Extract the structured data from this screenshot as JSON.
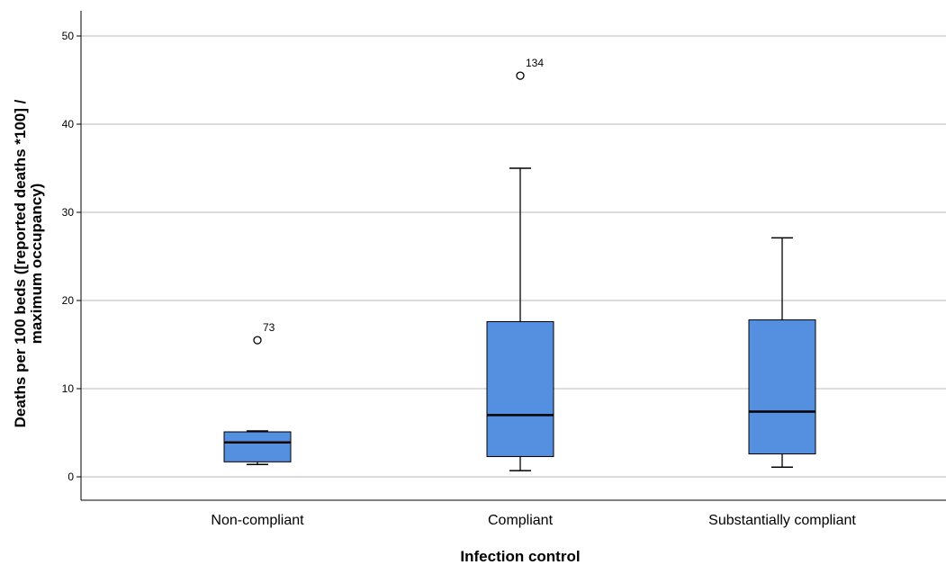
{
  "chart_data": {
    "type": "boxplot",
    "title": "",
    "xlabel": "Infection control",
    "ylabel_lines": [
      "Deaths per 100 beds ([reported deaths *100] /",
      "maximum occupancy)"
    ],
    "ylim": [
      0,
      52
    ],
    "yticks": [
      0,
      10,
      20,
      30,
      40,
      50
    ],
    "grid": true,
    "box_color": "#558fdf",
    "categories": [
      "Non-compliant",
      "Compliant",
      "Substantially compliant"
    ],
    "boxes": [
      {
        "category": "Non-compliant",
        "whisker_low": 1.4,
        "q1": 1.7,
        "median": 3.9,
        "q3": 5.1,
        "whisker_high": 5.2,
        "outliers": [
          {
            "value": 15.5,
            "label": "73"
          }
        ]
      },
      {
        "category": "Compliant",
        "whisker_low": 0.7,
        "q1": 2.3,
        "median": 7.0,
        "q3": 17.6,
        "whisker_high": 35.0,
        "outliers": [
          {
            "value": 45.5,
            "label": "134"
          }
        ]
      },
      {
        "category": "Substantially compliant",
        "whisker_low": 1.1,
        "q1": 2.6,
        "median": 7.4,
        "q3": 17.8,
        "whisker_high": 27.1,
        "outliers": []
      }
    ]
  }
}
